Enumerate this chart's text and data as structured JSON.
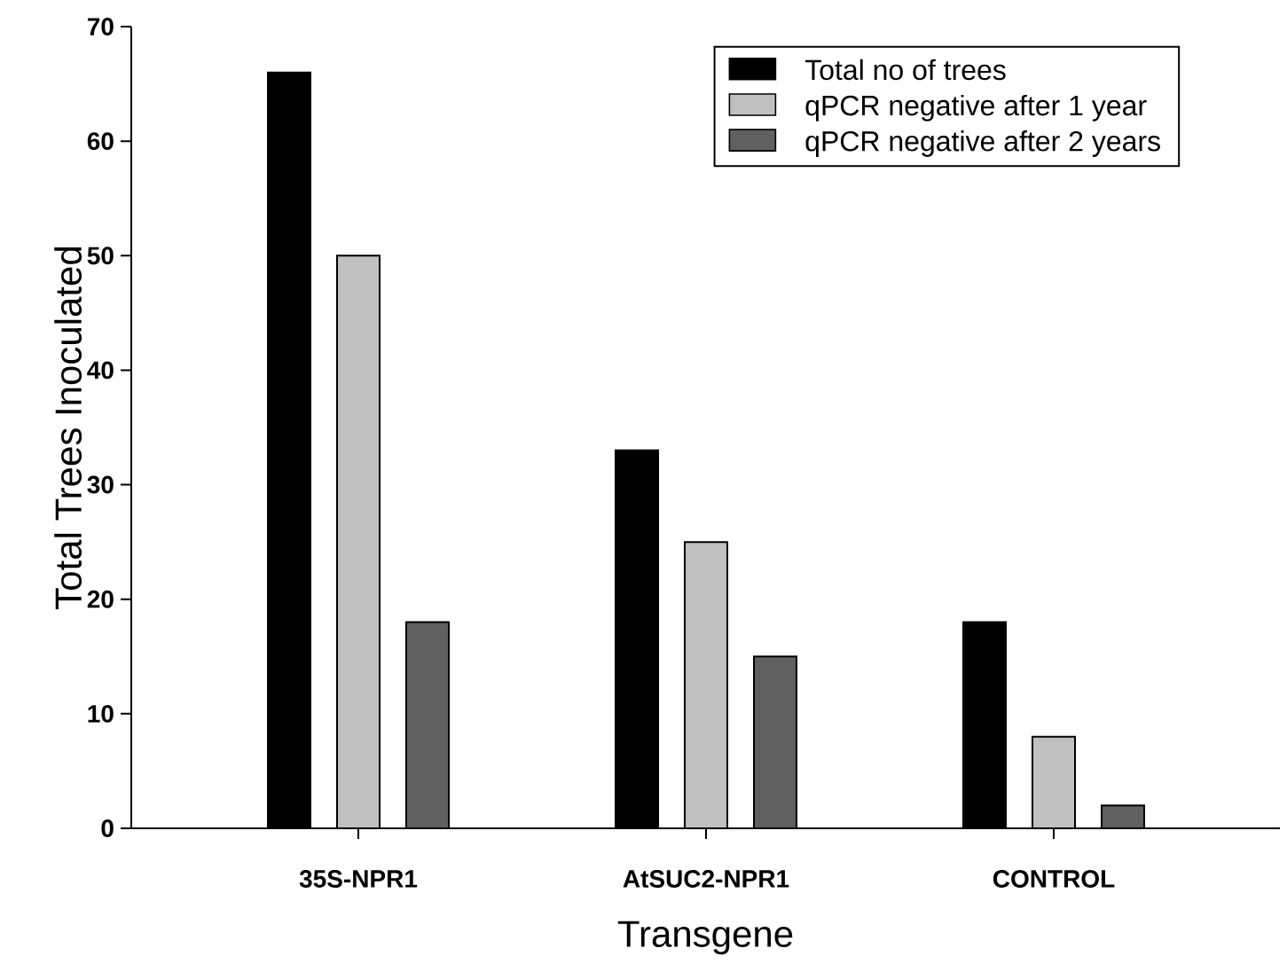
{
  "chart_data": {
    "type": "bar",
    "xlabel": "Transgene",
    "ylabel": "Total Trees Inoculated",
    "categories": [
      "35S-NPR1",
      "AtSUC2-NPR1",
      "CONTROL"
    ],
    "series": [
      {
        "name": "Total no of trees",
        "color": "#000000",
        "values": [
          66,
          33,
          18
        ]
      },
      {
        "name": "qPCR negative after 1 year",
        "color": "#c0c0c0",
        "values": [
          50,
          25,
          8
        ]
      },
      {
        "name": "qPCR negative after 2 years",
        "color": "#606060",
        "values": [
          18,
          15,
          2
        ]
      }
    ],
    "ylim": [
      0,
      70
    ],
    "yticks": [
      0,
      10,
      20,
      30,
      40,
      50,
      60,
      70
    ],
    "grid": false,
    "legend": "top right"
  }
}
